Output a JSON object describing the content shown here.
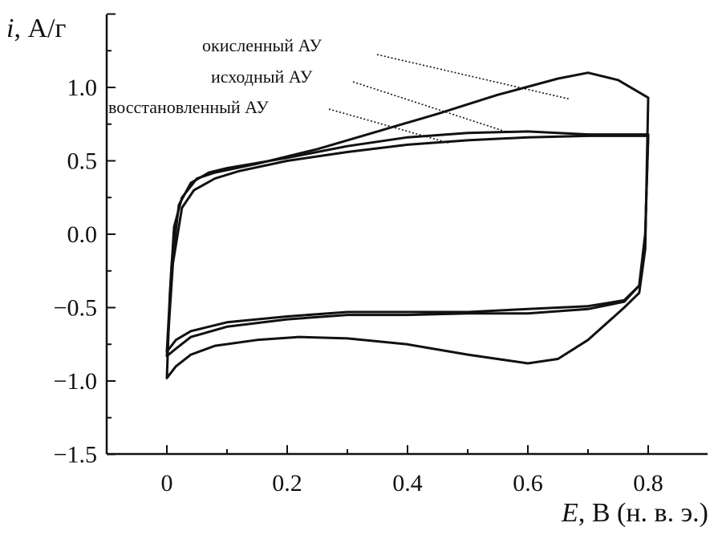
{
  "chart_data": {
    "type": "line",
    "xlabel_italic": "E",
    "xlabel_rest": ", В (н. в. э.)",
    "ylabel_italic": "i",
    "ylabel_rest": ", А/г",
    "xlim": [
      -0.1,
      0.9
    ],
    "ylim": [
      -1.5,
      1.5
    ],
    "x_ticks": [
      0,
      0.2,
      0.4,
      0.6,
      0.8
    ],
    "x_tick_labels": [
      "0",
      "0.2",
      "0.4",
      "0.6",
      "0.8"
    ],
    "y_ticks": [
      1.0,
      0.5,
      0.0,
      -0.5,
      -1.0,
      -1.5
    ],
    "y_tick_labels": [
      "1.0",
      "0.5",
      "0.0",
      "−0.5",
      "−1.0",
      "−1.5"
    ],
    "grid": false,
    "series": [
      {
        "name": "окисленный АУ",
        "upper": [
          [
            0.0,
            -0.98
          ],
          [
            0.005,
            -0.4
          ],
          [
            0.012,
            0.05
          ],
          [
            0.025,
            0.25
          ],
          [
            0.05,
            0.38
          ],
          [
            0.08,
            0.42
          ],
          [
            0.15,
            0.48
          ],
          [
            0.25,
            0.58
          ],
          [
            0.35,
            0.7
          ],
          [
            0.45,
            0.82
          ],
          [
            0.55,
            0.95
          ],
          [
            0.65,
            1.06
          ],
          [
            0.7,
            1.1
          ],
          [
            0.75,
            1.05
          ],
          [
            0.8,
            0.93
          ]
        ],
        "lower": [
          [
            0.8,
            0.93
          ],
          [
            0.795,
            -0.1
          ],
          [
            0.785,
            -0.4
          ],
          [
            0.76,
            -0.5
          ],
          [
            0.7,
            -0.72
          ],
          [
            0.65,
            -0.85
          ],
          [
            0.6,
            -0.88
          ],
          [
            0.5,
            -0.82
          ],
          [
            0.4,
            -0.75
          ],
          [
            0.3,
            -0.71
          ],
          [
            0.22,
            -0.7
          ],
          [
            0.15,
            -0.72
          ],
          [
            0.08,
            -0.76
          ],
          [
            0.04,
            -0.82
          ],
          [
            0.015,
            -0.9
          ],
          [
            0.0,
            -0.98
          ]
        ]
      },
      {
        "name": "исходный АУ",
        "upper": [
          [
            0.0,
            -0.8
          ],
          [
            0.008,
            -0.2
          ],
          [
            0.02,
            0.2
          ],
          [
            0.04,
            0.35
          ],
          [
            0.07,
            0.42
          ],
          [
            0.1,
            0.45
          ],
          [
            0.2,
            0.52
          ],
          [
            0.3,
            0.6
          ],
          [
            0.4,
            0.66
          ],
          [
            0.5,
            0.69
          ],
          [
            0.6,
            0.7
          ],
          [
            0.7,
            0.68
          ],
          [
            0.8,
            0.68
          ]
        ],
        "lower": [
          [
            0.8,
            0.68
          ],
          [
            0.795,
            0.0
          ],
          [
            0.785,
            -0.35
          ],
          [
            0.76,
            -0.45
          ],
          [
            0.7,
            -0.49
          ],
          [
            0.6,
            -0.51
          ],
          [
            0.5,
            -0.53
          ],
          [
            0.4,
            -0.53
          ],
          [
            0.3,
            -0.53
          ],
          [
            0.2,
            -0.56
          ],
          [
            0.1,
            -0.6
          ],
          [
            0.04,
            -0.66
          ],
          [
            0.015,
            -0.72
          ],
          [
            0.0,
            -0.8
          ]
        ]
      },
      {
        "name": "восстановленный АУ",
        "upper": [
          [
            0.0,
            -0.83
          ],
          [
            0.01,
            -0.2
          ],
          [
            0.025,
            0.18
          ],
          [
            0.045,
            0.3
          ],
          [
            0.08,
            0.38
          ],
          [
            0.12,
            0.43
          ],
          [
            0.2,
            0.5
          ],
          [
            0.3,
            0.56
          ],
          [
            0.4,
            0.61
          ],
          [
            0.5,
            0.64
          ],
          [
            0.6,
            0.66
          ],
          [
            0.7,
            0.67
          ],
          [
            0.8,
            0.67
          ]
        ],
        "lower": [
          [
            0.8,
            0.67
          ],
          [
            0.795,
            0.0
          ],
          [
            0.785,
            -0.35
          ],
          [
            0.76,
            -0.46
          ],
          [
            0.7,
            -0.51
          ],
          [
            0.6,
            -0.54
          ],
          [
            0.5,
            -0.54
          ],
          [
            0.4,
            -0.55
          ],
          [
            0.3,
            -0.55
          ],
          [
            0.2,
            -0.58
          ],
          [
            0.1,
            -0.63
          ],
          [
            0.04,
            -0.7
          ],
          [
            0.015,
            -0.78
          ],
          [
            0.0,
            -0.83
          ]
        ]
      }
    ],
    "annotations": [
      {
        "text": "окисленный АУ",
        "target": [
          0.67,
          0.92
        ]
      },
      {
        "text": "исходный АУ",
        "target": [
          0.57,
          0.69
        ]
      },
      {
        "text": "восстановленный АУ",
        "target": [
          0.47,
          0.62
        ]
      }
    ]
  }
}
